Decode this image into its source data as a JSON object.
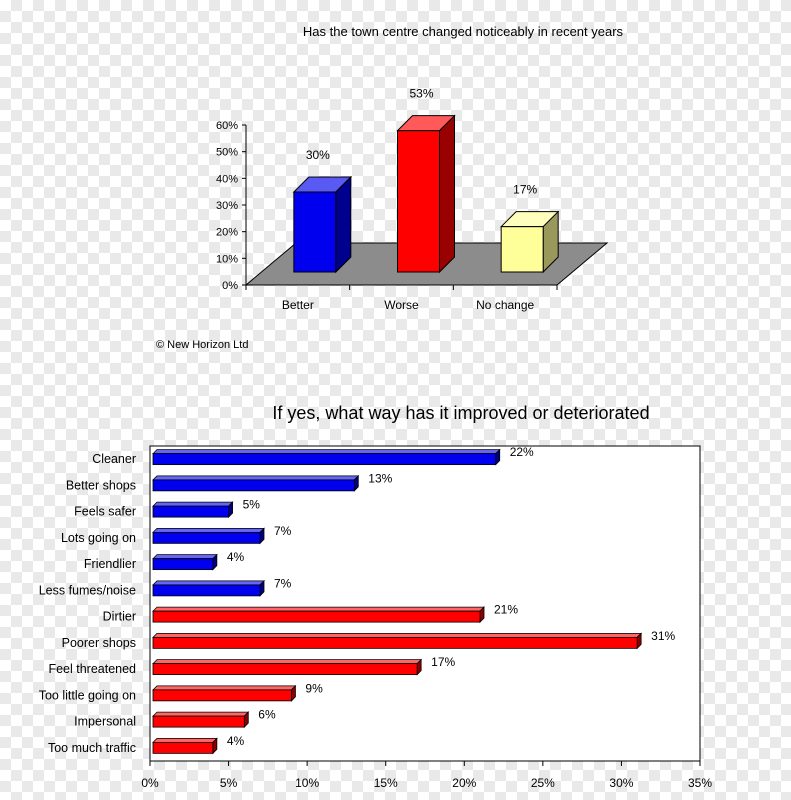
{
  "colors": {
    "blue": "#0000ee",
    "red": "#ff0000",
    "yellow": "#ffff99",
    "floor": "#8c8c8c"
  },
  "chart_data": [
    {
      "type": "bar",
      "title": "Has the town centre changed noticeably in recent years",
      "categories": [
        "Better",
        "Worse",
        "No change"
      ],
      "values": [
        30,
        53,
        17
      ],
      "value_labels": [
        "30%",
        "53%",
        "17%"
      ],
      "bar_colors": [
        "#0000ee",
        "#ff0000",
        "#ffff99"
      ],
      "ylim": [
        0,
        60
      ],
      "yticks": [
        "0%",
        "10%",
        "20%",
        "30%",
        "40%",
        "50%",
        "60%"
      ],
      "style": "3d",
      "grid": false,
      "footnote": "© New Horizon Ltd"
    },
    {
      "type": "bar",
      "orientation": "horizontal",
      "title": "If yes, what way has it improved or deteriorated",
      "categories": [
        "Cleaner",
        "Better shops",
        "Feels safer",
        "Lots going on",
        "Friendlier",
        "Less fumes/noise",
        "Dirtier",
        "Poorer shops",
        "Feel threatened",
        "Too little going on",
        "Impersonal",
        "Too much traffic"
      ],
      "values": [
        22,
        13,
        5,
        7,
        4,
        7,
        21,
        31,
        17,
        9,
        6,
        4
      ],
      "value_labels": [
        "22%",
        "13%",
        "5%",
        "7%",
        "4%",
        "7%",
        "21%",
        "31%",
        "17%",
        "9%",
        "6%",
        "4%"
      ],
      "bar_colors": [
        "#0000ee",
        "#0000ee",
        "#0000ee",
        "#0000ee",
        "#0000ee",
        "#0000ee",
        "#ff0000",
        "#ff0000",
        "#ff0000",
        "#ff0000",
        "#ff0000",
        "#ff0000"
      ],
      "xlim": [
        0,
        35
      ],
      "xticks": [
        "0%",
        "5%",
        "10%",
        "15%",
        "20%",
        "25%",
        "30%",
        "35%"
      ],
      "grid": false
    }
  ]
}
